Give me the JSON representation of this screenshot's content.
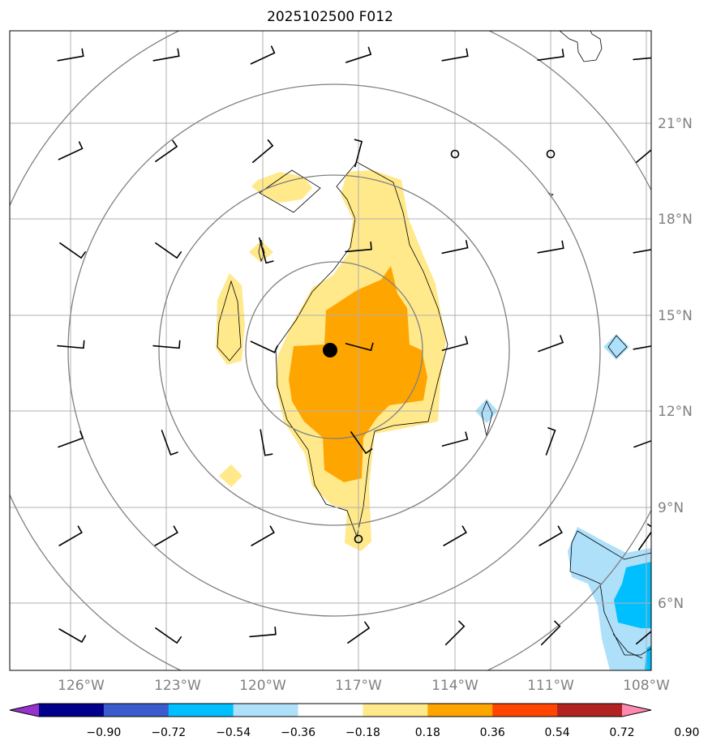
{
  "title": "2025102500 F012",
  "lon_labels": [
    "126°W",
    "123°W",
    "120°W",
    "117°W",
    "114°W",
    "111°W",
    "108°W"
  ],
  "lat_labels": [
    "21°N",
    "18°N",
    "15°N",
    "12°N",
    "9°N",
    "6°N"
  ],
  "extent": {
    "lon": [
      -128,
      -108
    ],
    "lat": [
      4,
      24
    ]
  },
  "grid": true,
  "storm_center": {
    "lon": -118.0,
    "lat": 13.9
  },
  "colorbar": {
    "tick_labels": [
      "−0.90",
      "−0.72",
      "−0.54",
      "−0.36",
      "−0.18",
      "0.18",
      "0.36",
      "0.54",
      "0.72",
      "0.90"
    ],
    "colors": [
      "#9932cc",
      "#00008b",
      "#3a5bcc",
      "#00bfff",
      "#aee0fa",
      "#ffffff",
      "#ffe98b",
      "#ffa500",
      "#ff4500",
      "#b22222",
      "#ff88b0"
    ],
    "extend": "both"
  },
  "colors": {
    "light_positive": "#ffe98b",
    "positive": "#ffa500",
    "light_negative": "#aee0fa",
    "negative": "#00bfff",
    "range_rings": "#808080",
    "gridlines": "#b0b0b0"
  }
}
